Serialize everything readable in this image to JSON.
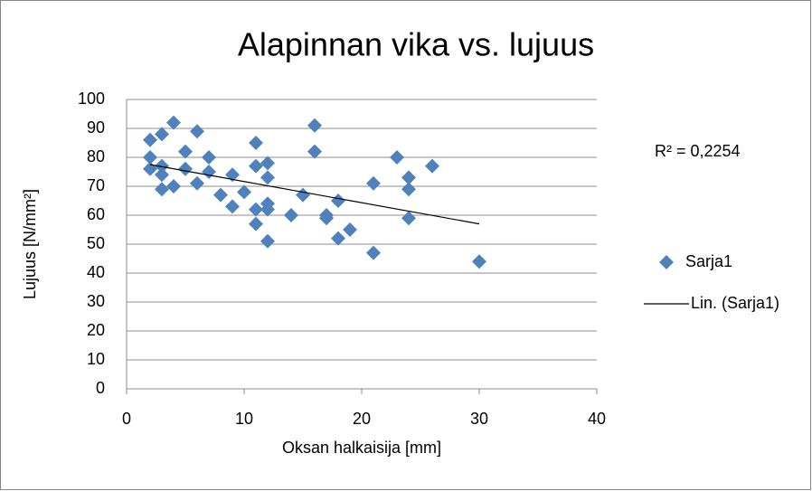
{
  "chart_data": {
    "type": "scatter",
    "title": "Alapinnan vika vs. lujuus",
    "xlabel": "Oksan halkaisija [mm]",
    "ylabel": "Lujuus [N/mm²]",
    "series": [
      {
        "name": "Sarja1",
        "color": "#4f81bd",
        "x": [
          2,
          2,
          2,
          3,
          3,
          3,
          3,
          4,
          4,
          5,
          5,
          6,
          6,
          7,
          7,
          8,
          9,
          9,
          10,
          11,
          11,
          11,
          11,
          12,
          12,
          12,
          12,
          12,
          14,
          15,
          16,
          16,
          17,
          17,
          18,
          18,
          19,
          21,
          21,
          23,
          24,
          24,
          24,
          26,
          30
        ],
        "values": [
          86,
          80,
          76,
          88,
          77,
          74,
          69,
          92,
          70,
          82,
          76,
          89,
          71,
          80,
          75,
          67,
          74,
          63,
          68,
          85,
          77,
          62,
          57,
          78,
          73,
          64,
          62,
          51,
          60,
          67,
          91,
          82,
          60,
          59,
          65,
          52,
          55,
          71,
          47,
          80,
          73,
          69,
          59,
          77,
          44
        ]
      }
    ],
    "trendline": {
      "name": "Lin. (Sarja1)",
      "color": "#000000",
      "x": [
        2,
        30
      ],
      "values": [
        77.5,
        57
      ]
    },
    "annotation": "R² = 0,2254",
    "xlim": [
      0,
      40
    ],
    "xticks": [
      0,
      10,
      20,
      30,
      40
    ],
    "ylim": [
      0,
      100
    ],
    "yticks": [
      0,
      10,
      20,
      30,
      40,
      50,
      60,
      70,
      80,
      90,
      100
    ],
    "grid": true,
    "legend": "right"
  }
}
